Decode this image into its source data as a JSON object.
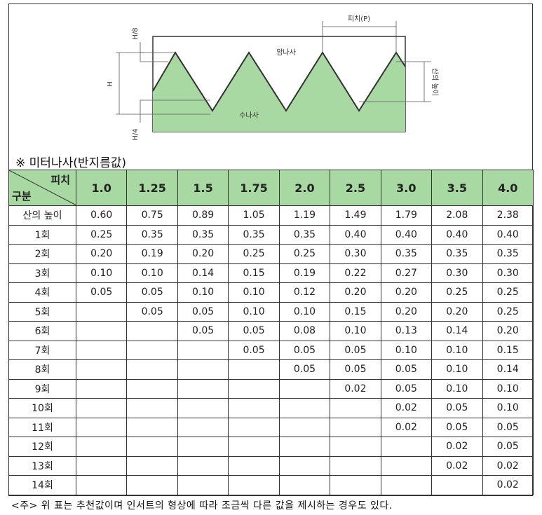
{
  "diagram": {
    "pitch": "피치(P)",
    "h8": "H/8",
    "h": "H",
    "h4": "H/4",
    "female": "암나사",
    "male": "수나사",
    "height": "산의 높이"
  },
  "section_title": "※ 미터나사(반지름값)",
  "table": {
    "corner_top": "피치",
    "corner_bottom": "구분",
    "columns": [
      "1.0",
      "1.25",
      "1.5",
      "1.75",
      "2.0",
      "2.5",
      "3.0",
      "3.5",
      "4.0"
    ],
    "rows": [
      {
        "label": "산의 높이",
        "cells": [
          "0.60",
          "0.75",
          "0.89",
          "1.05",
          "1.19",
          "1.49",
          "1.79",
          "2.08",
          "2.38"
        ]
      },
      {
        "label": "1회",
        "cells": [
          "0.25",
          "0.35",
          "0.35",
          "0.35",
          "0.35",
          "0.40",
          "0.40",
          "0.40",
          "0.40"
        ]
      },
      {
        "label": "2회",
        "cells": [
          "0.20",
          "0.19",
          "0.20",
          "0.25",
          "0.25",
          "0.30",
          "0.35",
          "0.35",
          "0.35"
        ]
      },
      {
        "label": "3회",
        "cells": [
          "0.10",
          "0.10",
          "0.14",
          "0.15",
          "0.19",
          "0.22",
          "0.27",
          "0.30",
          "0.30"
        ]
      },
      {
        "label": "4회",
        "cells": [
          "0.05",
          "0.05",
          "0.10",
          "0.10",
          "0.12",
          "0.20",
          "0.20",
          "0.25",
          "0.25"
        ]
      },
      {
        "label": "5회",
        "cells": [
          null,
          "0.05",
          "0.05",
          "0.10",
          "0.10",
          "0.15",
          "0.20",
          "0.20",
          "0.25"
        ]
      },
      {
        "label": "6회",
        "cells": [
          null,
          null,
          "0.05",
          "0.05",
          "0.08",
          "0.10",
          "0.13",
          "0.14",
          "0.20"
        ]
      },
      {
        "label": "7회",
        "cells": [
          null,
          null,
          null,
          "0.05",
          "0.05",
          "0.05",
          "0.10",
          "0.10",
          "0.15"
        ]
      },
      {
        "label": "8회",
        "cells": [
          null,
          null,
          null,
          null,
          "0.05",
          "0.05",
          "0.05",
          "0.10",
          "0.14"
        ]
      },
      {
        "label": "9회",
        "cells": [
          null,
          null,
          null,
          null,
          null,
          "0.02",
          "0.05",
          "0.10",
          "0.10"
        ]
      },
      {
        "label": "10회",
        "cells": [
          null,
          null,
          null,
          null,
          null,
          null,
          "0.02",
          "0.05",
          "0.10"
        ]
      },
      {
        "label": "11회",
        "cells": [
          null,
          null,
          null,
          null,
          null,
          null,
          "0.02",
          "0.05",
          "0.05"
        ]
      },
      {
        "label": "12회",
        "cells": [
          null,
          null,
          null,
          null,
          null,
          null,
          null,
          "0.02",
          "0.05"
        ]
      },
      {
        "label": "13회",
        "cells": [
          null,
          null,
          null,
          null,
          null,
          null,
          null,
          "0.02",
          "0.02"
        ]
      },
      {
        "label": "14회",
        "cells": [
          null,
          null,
          null,
          null,
          null,
          null,
          null,
          null,
          "0.02"
        ]
      }
    ]
  },
  "footnote": "<주> 위 표는 추천값이며 인서트의 형상에 따라 조금씩 다른 값을 제시하는 경우도 있다."
}
